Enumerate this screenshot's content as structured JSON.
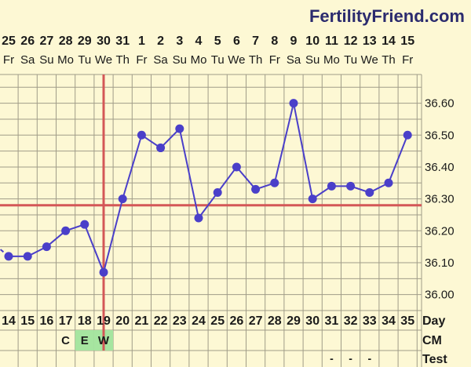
{
  "brand": "FertilityFriend.com",
  "row_labels": {
    "day": "Day",
    "cm": "CM",
    "test": "Test"
  },
  "colors": {
    "background": "#fdf8d4",
    "grid": "#a09c88",
    "line": "#4a3fc9",
    "coverline": "#d45757",
    "ovulation": "#d45757",
    "cm_fill": "#a6e5a0"
  },
  "chart_data": {
    "type": "line",
    "title": "",
    "xlabel": "Day",
    "ylabel": "",
    "dates": [
      "25",
      "26",
      "27",
      "28",
      "29",
      "30",
      "31",
      "1",
      "2",
      "3",
      "4",
      "5",
      "6",
      "7",
      "8",
      "9",
      "10",
      "11",
      "12",
      "13",
      "14",
      "15"
    ],
    "weekdays": [
      "Fr",
      "Sa",
      "Su",
      "Mo",
      "Tu",
      "We",
      "Th",
      "Fr",
      "Sa",
      "Su",
      "Mo",
      "Tu",
      "We",
      "Th",
      "Fr",
      "Sa",
      "Su",
      "Mo",
      "Tu",
      "We",
      "Th",
      "Fr"
    ],
    "cycle_days": [
      14,
      15,
      16,
      17,
      18,
      19,
      20,
      21,
      22,
      23,
      24,
      25,
      26,
      27,
      28,
      29,
      30,
      31,
      32,
      33,
      34,
      35
    ],
    "temps": [
      36.12,
      36.12,
      36.15,
      36.2,
      36.22,
      36.07,
      36.3,
      36.5,
      36.46,
      36.52,
      36.24,
      36.32,
      36.4,
      36.33,
      36.35,
      36.6,
      36.3,
      36.34,
      36.34,
      36.32,
      36.35,
      36.5
    ],
    "prior_day_temp": 36.17,
    "y_ticks": [
      "36.00",
      "36.10",
      "36.20",
      "36.30",
      "36.40",
      "36.50",
      "36.60"
    ],
    "ylim": [
      35.95,
      36.69
    ],
    "coverline": 36.28,
    "ovulation_cycle_day": 19,
    "grid": true,
    "cm": [
      {
        "cycle_day": 17,
        "code": "C",
        "highlight": false
      },
      {
        "cycle_day": 18,
        "code": "E",
        "highlight": true
      },
      {
        "cycle_day": 19,
        "code": "W",
        "highlight": true
      }
    ],
    "tests": [
      {
        "cycle_day": 31,
        "mark": "-"
      },
      {
        "cycle_day": 32,
        "mark": "-"
      },
      {
        "cycle_day": 33,
        "mark": "-"
      }
    ]
  }
}
